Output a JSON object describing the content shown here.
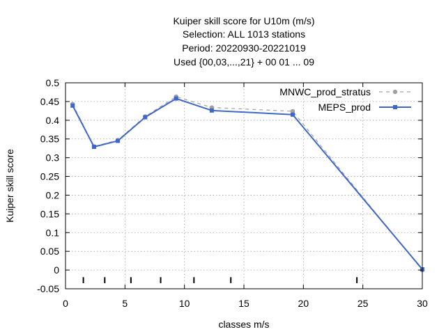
{
  "chart_data": {
    "type": "line",
    "title_lines": [
      "Kuiper skill score  for U10m (m/s)",
      "Selection: ALL    1013 stations",
      "Period: 20220930-20221019",
      "Used {00,03,...,21} + 00 01 ... 09"
    ],
    "xlabel": "classes m/s",
    "ylabel": "Kuiper skill score",
    "xlim": [
      0,
      30
    ],
    "ylim": [
      -0.05,
      0.5
    ],
    "xticks": [
      0,
      5,
      10,
      15,
      20,
      25,
      30
    ],
    "yticks": [
      -0.05,
      0,
      0.05,
      0.1,
      0.15,
      0.2,
      0.25,
      0.3,
      0.35,
      0.4,
      0.45,
      0.5
    ],
    "grid": true,
    "legend_position": "top-right",
    "class_limits": [
      1.5,
      3.3,
      5.5,
      8.0,
      10.8,
      13.9,
      24.5
    ],
    "series": [
      {
        "name": "MNWC_prod_stratus",
        "color": "#a0a0a0",
        "style": "dashed",
        "x": [
          0.6,
          2.4,
          4.4,
          6.7,
          9.3,
          12.3,
          19.1,
          30.0
        ],
        "y": [
          0.443,
          0.33,
          0.347,
          0.41,
          0.463,
          0.434,
          0.424,
          0.0
        ]
      },
      {
        "name": "MEPS_prod",
        "color": "#3f66c9",
        "style": "solid",
        "x": [
          0.6,
          2.4,
          4.4,
          6.7,
          9.3,
          12.3,
          19.1,
          30.0
        ],
        "y": [
          0.439,
          0.329,
          0.345,
          0.408,
          0.458,
          0.426,
          0.415,
          0.002
        ]
      }
    ]
  }
}
